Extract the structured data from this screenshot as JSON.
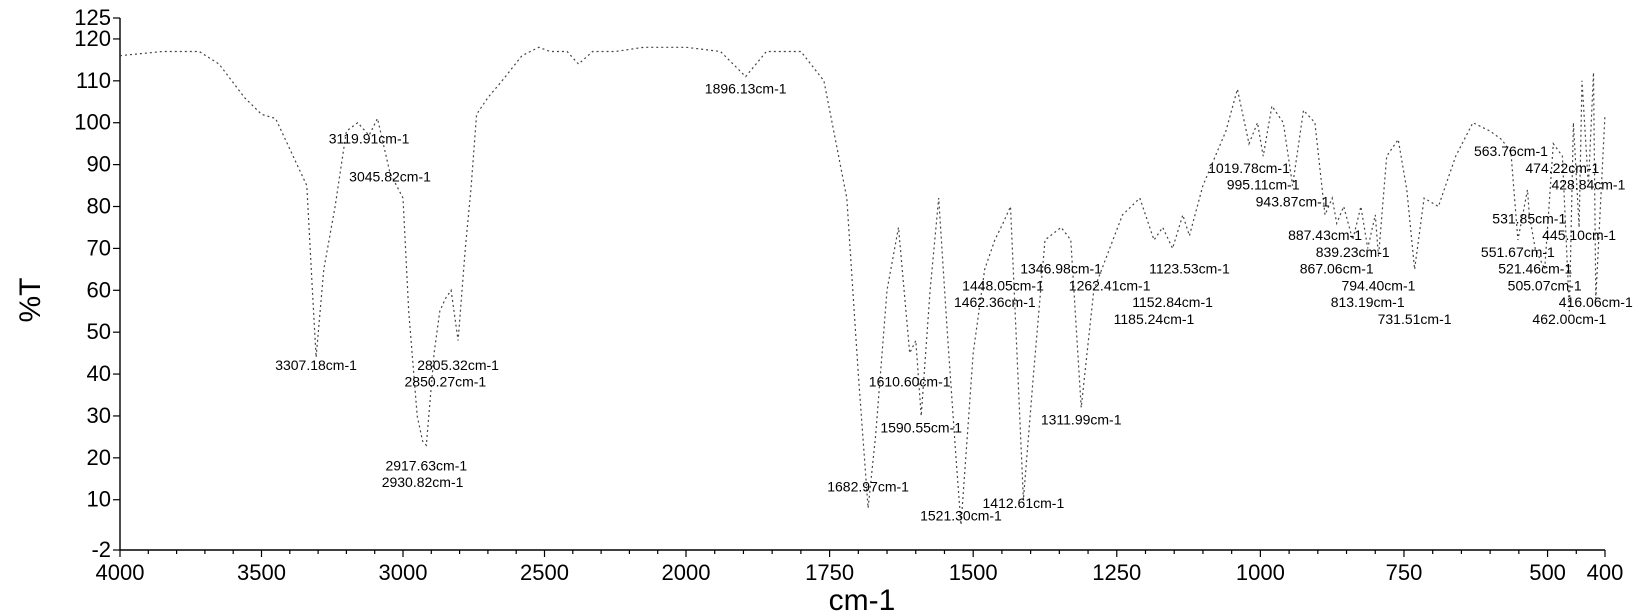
{
  "chart_data": {
    "type": "line",
    "title": "",
    "xlabel": "cm-1",
    "ylabel": "%T",
    "x_axis": {
      "breaks": [
        {
          "from": 4000,
          "to": 2000
        },
        {
          "from": 2000,
          "to": 400
        }
      ],
      "ticks": [
        {
          "value": 4000,
          "label": "4000"
        },
        {
          "value": 3500,
          "label": "3500"
        },
        {
          "value": 3000,
          "label": "3000"
        },
        {
          "value": 2500,
          "label": "2500"
        },
        {
          "value": 2000,
          "label": "2000"
        },
        {
          "value": 1750,
          "label": "1750"
        },
        {
          "value": 1500,
          "label": "1500"
        },
        {
          "value": 1250,
          "label": "1250"
        },
        {
          "value": 1000,
          "label": "1000"
        },
        {
          "value": 750,
          "label": "750"
        },
        {
          "value": 500,
          "label": "500"
        },
        {
          "value": 400,
          "label": "400"
        }
      ]
    },
    "y_axis": {
      "ylim": [
        -2,
        125
      ],
      "ticks": [
        {
          "value": -2,
          "label": "-2"
        },
        {
          "value": 10,
          "label": "10"
        },
        {
          "value": 20,
          "label": "20"
        },
        {
          "value": 30,
          "label": "30"
        },
        {
          "value": 40,
          "label": "40"
        },
        {
          "value": 50,
          "label": "50"
        },
        {
          "value": 60,
          "label": "60"
        },
        {
          "value": 70,
          "label": "70"
        },
        {
          "value": 80,
          "label": "80"
        },
        {
          "value": 90,
          "label": "90"
        },
        {
          "value": 100,
          "label": "100"
        },
        {
          "value": 110,
          "label": "110"
        },
        {
          "value": 120,
          "label": "120"
        },
        {
          "value": 125,
          "label": "125"
        }
      ]
    },
    "series": [
      {
        "points": [
          [
            4000,
            116
          ],
          [
            3850,
            117
          ],
          [
            3720,
            117
          ],
          [
            3650,
            114
          ],
          [
            3560,
            106
          ],
          [
            3500,
            102
          ],
          [
            3450,
            101
          ],
          [
            3340,
            85
          ],
          [
            3320,
            60
          ],
          [
            3307.18,
            44
          ],
          [
            3280,
            65
          ],
          [
            3240,
            80
          ],
          [
            3200,
            98
          ],
          [
            3160,
            100
          ],
          [
            3119.91,
            97
          ],
          [
            3090,
            101
          ],
          [
            3045.82,
            88
          ],
          [
            3000,
            82
          ],
          [
            2980,
            55
          ],
          [
            2950,
            30
          ],
          [
            2930.82,
            24
          ],
          [
            2917.63,
            23
          ],
          [
            2890,
            45
          ],
          [
            2870,
            55
          ],
          [
            2850.27,
            58
          ],
          [
            2830,
            60
          ],
          [
            2805.32,
            48
          ],
          [
            2780,
            70
          ],
          [
            2760,
            84
          ],
          [
            2740,
            102
          ],
          [
            2700,
            106
          ],
          [
            2650,
            110
          ],
          [
            2580,
            116
          ],
          [
            2520,
            118
          ],
          [
            2480,
            117
          ],
          [
            2420,
            117
          ],
          [
            2380,
            114
          ],
          [
            2330,
            117
          ],
          [
            2250,
            117
          ],
          [
            2150,
            118
          ],
          [
            2050,
            118
          ],
          [
            2000,
            118
          ],
          [
            1940,
            117
          ],
          [
            1896.13,
            111
          ],
          [
            1860,
            117
          ],
          [
            1800,
            117
          ],
          [
            1760,
            110
          ],
          [
            1720,
            82
          ],
          [
            1700,
            40
          ],
          [
            1682.97,
            8
          ],
          [
            1670,
            25
          ],
          [
            1650,
            60
          ],
          [
            1630,
            75
          ],
          [
            1610.6,
            45
          ],
          [
            1600,
            48
          ],
          [
            1590.55,
            30
          ],
          [
            1575,
            60
          ],
          [
            1560,
            82
          ],
          [
            1545,
            50
          ],
          [
            1530,
            20
          ],
          [
            1521.3,
            4
          ],
          [
            1500,
            45
          ],
          [
            1480,
            65
          ],
          [
            1462.36,
            72
          ],
          [
            1448.05,
            76
          ],
          [
            1435,
            80
          ],
          [
            1412.61,
            10
          ],
          [
            1395,
            40
          ],
          [
            1375,
            72
          ],
          [
            1346.98,
            75
          ],
          [
            1330,
            72
          ],
          [
            1311.99,
            32
          ],
          [
            1290,
            60
          ],
          [
            1262.41,
            70
          ],
          [
            1240,
            78
          ],
          [
            1210,
            82
          ],
          [
            1185.24,
            72
          ],
          [
            1170,
            75
          ],
          [
            1152.84,
            70
          ],
          [
            1135,
            78
          ],
          [
            1123.53,
            73
          ],
          [
            1100,
            85
          ],
          [
            1060,
            98
          ],
          [
            1040,
            108
          ],
          [
            1019.78,
            95
          ],
          [
            1005,
            100
          ],
          [
            995.11,
            92
          ],
          [
            980,
            104
          ],
          [
            960,
            100
          ],
          [
            943.87,
            85
          ],
          [
            925,
            103
          ],
          [
            905,
            100
          ],
          [
            887.43,
            78
          ],
          [
            875,
            82
          ],
          [
            867.06,
            76
          ],
          [
            855,
            80
          ],
          [
            839.23,
            72
          ],
          [
            825,
            80
          ],
          [
            813.19,
            70
          ],
          [
            800,
            78
          ],
          [
            794.4,
            68
          ],
          [
            780,
            92
          ],
          [
            760,
            96
          ],
          [
            745,
            84
          ],
          [
            731.51,
            65
          ],
          [
            715,
            82
          ],
          [
            690,
            80
          ],
          [
            660,
            92
          ],
          [
            630,
            100
          ],
          [
            600,
            98
          ],
          [
            580,
            96
          ],
          [
            563.76,
            93
          ],
          [
            551.67,
            72
          ],
          [
            535,
            84
          ],
          [
            531.85,
            78
          ],
          [
            521.46,
            70
          ],
          [
            505.07,
            65
          ],
          [
            490,
            95
          ],
          [
            474.22,
            92
          ],
          [
            462.0,
            55
          ],
          [
            455,
            100
          ],
          [
            445.1,
            75
          ],
          [
            440,
            110
          ],
          [
            428.84,
            85
          ],
          [
            420,
            112
          ],
          [
            416.06,
            58
          ],
          [
            400,
            102
          ]
        ]
      }
    ],
    "annotations": [
      {
        "label": "1896.13cm-1",
        "x": 1896.13,
        "y": 107
      },
      {
        "label": "3119.91cm-1",
        "x": 3119.91,
        "y": 95
      },
      {
        "label": "3045.82cm-1",
        "x": 3045.82,
        "y": 86
      },
      {
        "label": "3307.18cm-1",
        "x": 3307.18,
        "y": 41
      },
      {
        "label": "2805.32cm-1",
        "x": 2805.32,
        "y": 41
      },
      {
        "label": "2850.27cm-1",
        "x": 2850.27,
        "y": 37
      },
      {
        "label": "2917.63cm-1",
        "x": 2917.63,
        "y": 17
      },
      {
        "label": "2930.82cm-1",
        "x": 2930.82,
        "y": 13
      },
      {
        "label": "1610.60cm-1",
        "x": 1610.6,
        "y": 37
      },
      {
        "label": "1590.55cm-1",
        "x": 1590.55,
        "y": 26
      },
      {
        "label": "1682.97cm-1",
        "x": 1682.97,
        "y": 12
      },
      {
        "label": "1521.30cm-1",
        "x": 1521.3,
        "y": 5
      },
      {
        "label": "1412.61cm-1",
        "x": 1412.61,
        "y": 8
      },
      {
        "label": "1311.99cm-1",
        "x": 1311.99,
        "y": 28
      },
      {
        "label": "1346.98cm-1",
        "x": 1346.98,
        "y": 64
      },
      {
        "label": "1448.05cm-1",
        "x": 1448.05,
        "y": 60
      },
      {
        "label": "1262.41cm-1",
        "x": 1262.41,
        "y": 60
      },
      {
        "label": "1462.36cm-1",
        "x": 1462.36,
        "y": 56
      },
      {
        "label": "1123.53cm-1",
        "x": 1123.53,
        "y": 64
      },
      {
        "label": "1152.84cm-1",
        "x": 1152.84,
        "y": 56
      },
      {
        "label": "1185.24cm-1",
        "x": 1185.24,
        "y": 52
      },
      {
        "label": "1019.78cm-1",
        "x": 1019.78,
        "y": 88
      },
      {
        "label": "995.11cm-1",
        "x": 995.11,
        "y": 84
      },
      {
        "label": "943.87cm-1",
        "x": 943.87,
        "y": 80
      },
      {
        "label": "887.43cm-1",
        "x": 887.43,
        "y": 72
      },
      {
        "label": "839.23cm-1",
        "x": 839.23,
        "y": 68
      },
      {
        "label": "867.06cm-1",
        "x": 867.06,
        "y": 64
      },
      {
        "label": "794.40cm-1",
        "x": 794.4,
        "y": 60
      },
      {
        "label": "813.19cm-1",
        "x": 813.19,
        "y": 56
      },
      {
        "label": "731.51cm-1",
        "x": 731.51,
        "y": 52
      },
      {
        "label": "563.76cm-1",
        "x": 563.76,
        "y": 92
      },
      {
        "label": "474.22cm-1",
        "x": 474.22,
        "y": 88
      },
      {
        "label": "428.84cm-1",
        "x": 428.84,
        "y": 84
      },
      {
        "label": "531.85cm-1",
        "x": 531.85,
        "y": 76
      },
      {
        "label": "445.10cm-1",
        "x": 445.1,
        "y": 72
      },
      {
        "label": "551.67cm-1",
        "x": 551.67,
        "y": 68
      },
      {
        "label": "521.46cm-1",
        "x": 521.46,
        "y": 64
      },
      {
        "label": "505.07cm-1",
        "x": 505.07,
        "y": 60
      },
      {
        "label": "416.06cm-1",
        "x": 416.06,
        "y": 56
      },
      {
        "label": "462.00cm-1",
        "x": 462.0,
        "y": 52
      }
    ]
  }
}
